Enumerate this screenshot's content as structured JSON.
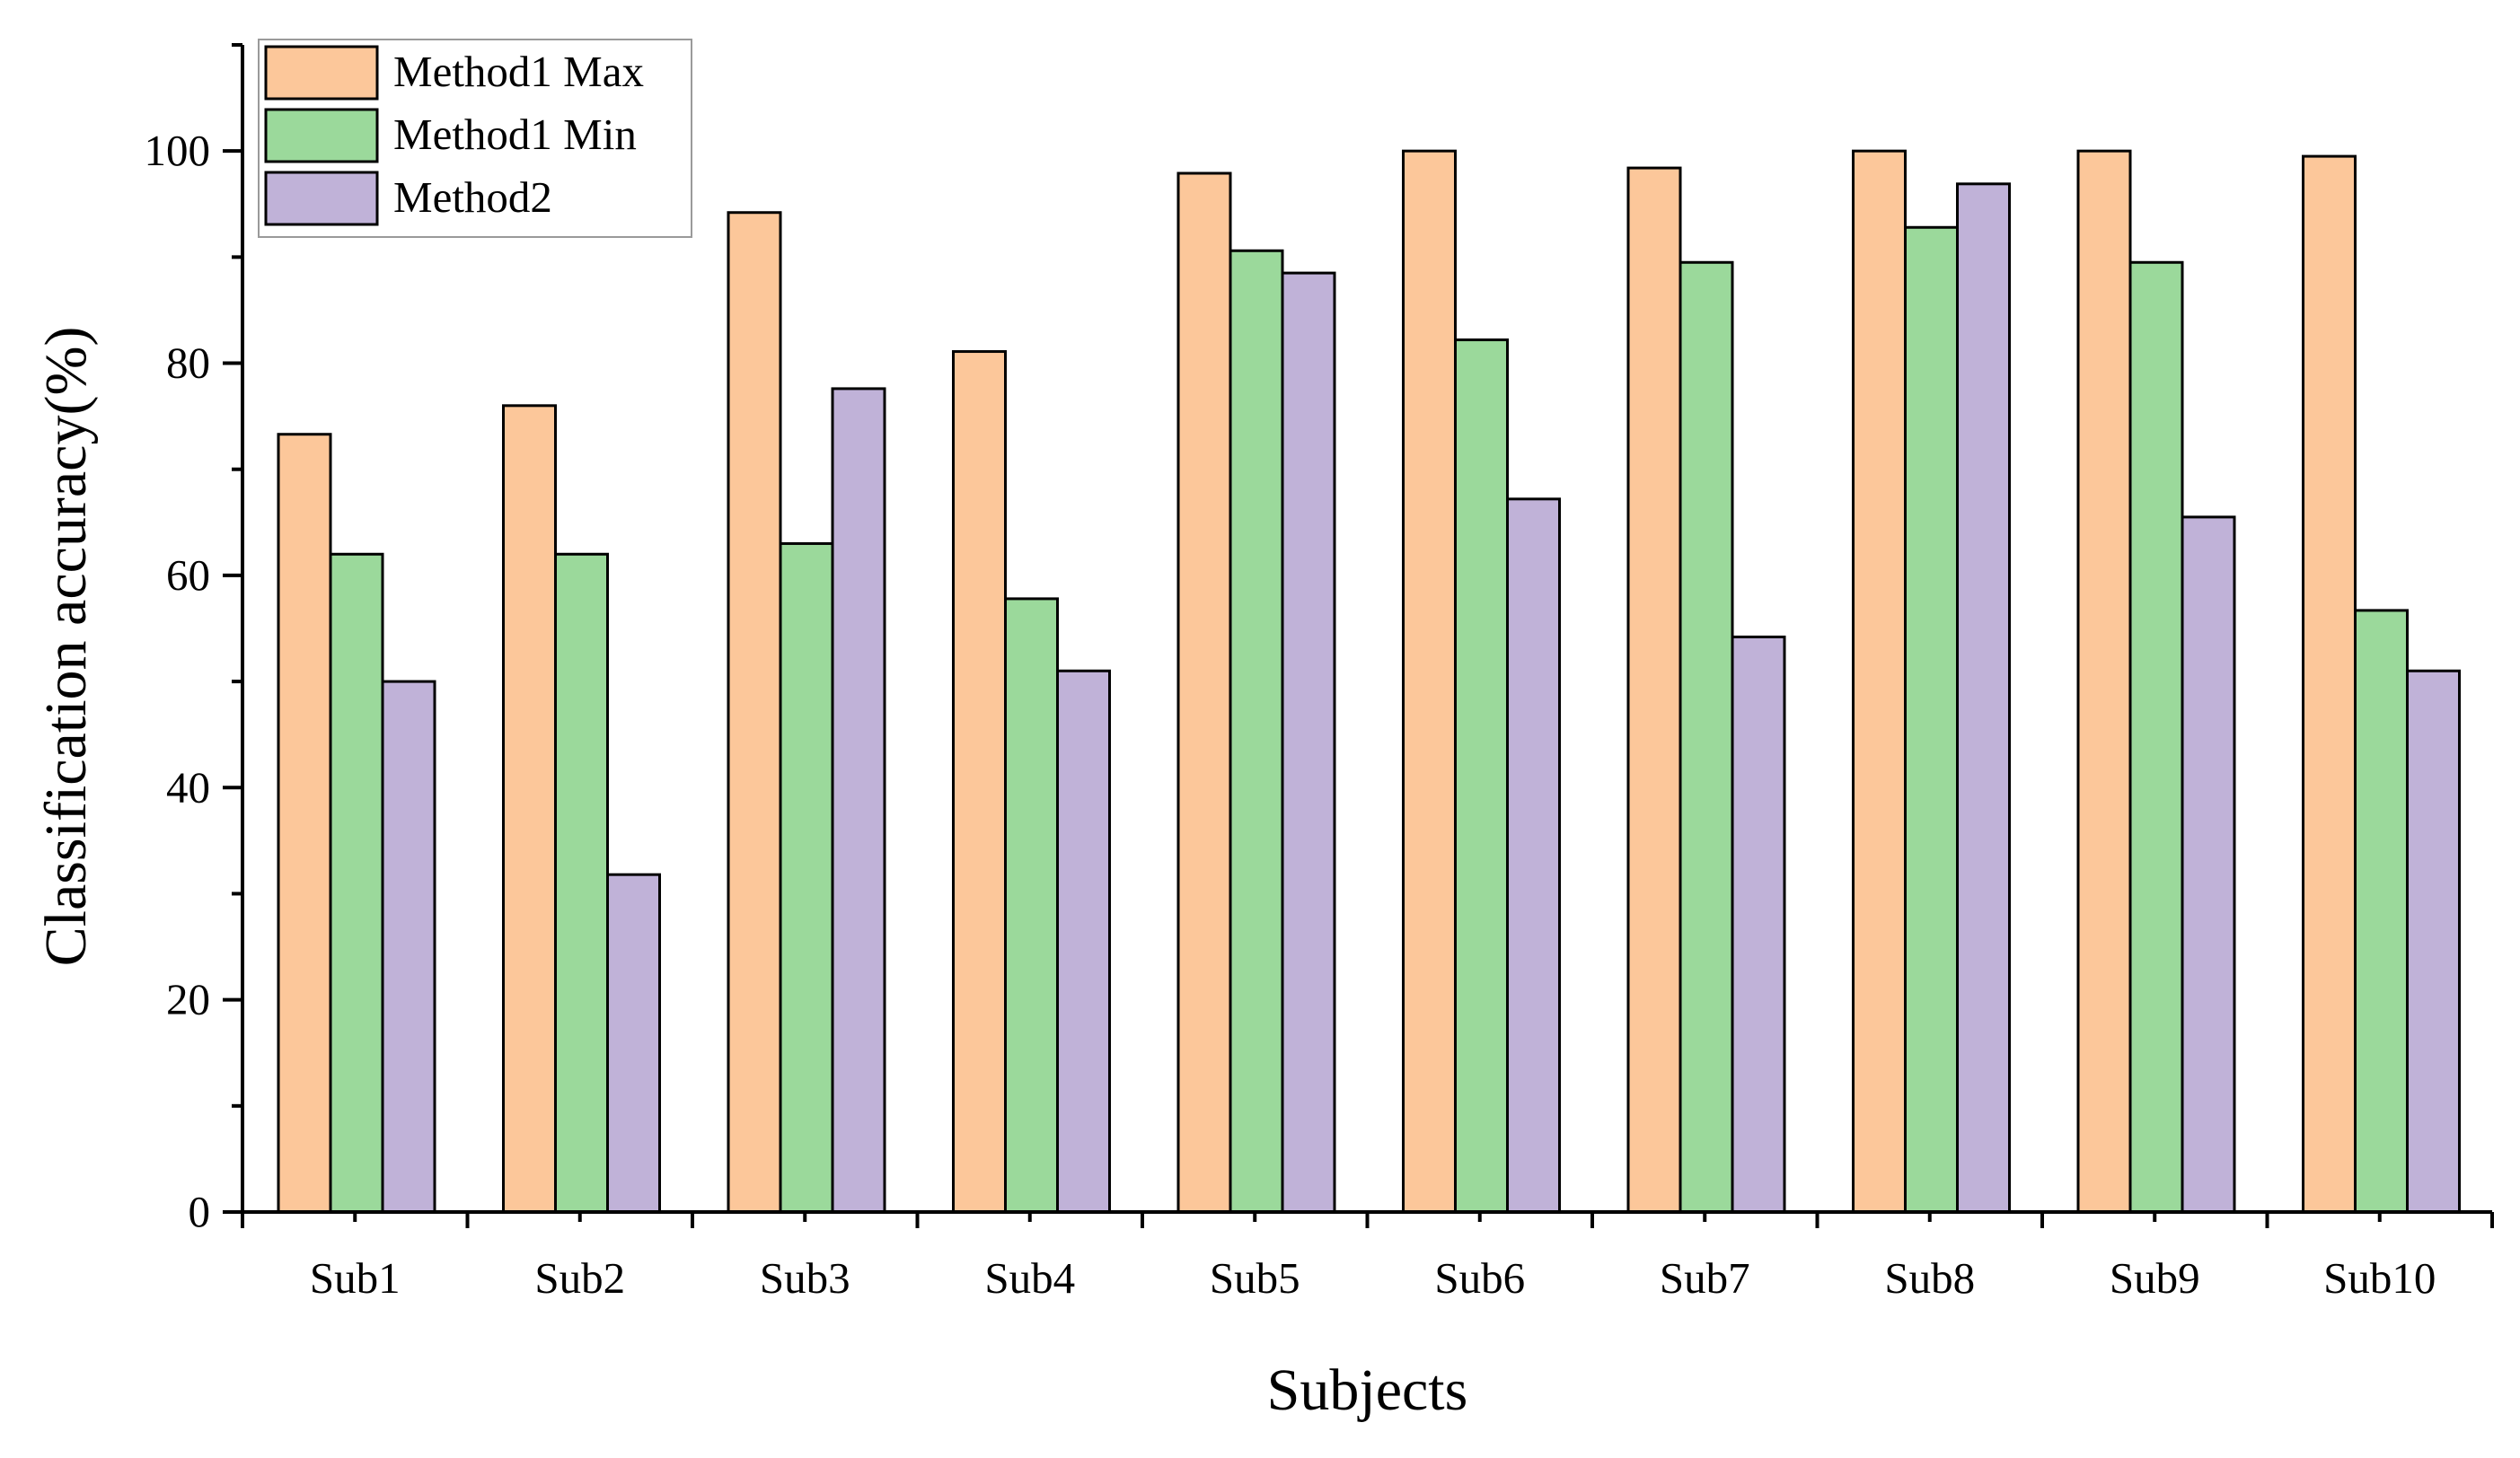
{
  "chart_data": {
    "type": "bar",
    "title": "",
    "xlabel": "Subjects",
    "ylabel": "Classification accuracy(%)",
    "ylim": [
      0,
      110
    ],
    "yticks": [
      "0",
      "20",
      "40",
      "60",
      "80",
      "100"
    ],
    "grid": false,
    "legend_position": "top-left",
    "categories": [
      "Sub1",
      "Sub2",
      "Sub3",
      "Sub4",
      "Sub5",
      "Sub6",
      "Sub7",
      "Sub8",
      "Sub9",
      "Sub10"
    ],
    "series": [
      {
        "name": "Method1 Max",
        "color": "#FCC79A",
        "values": [
          73.3,
          76.0,
          94.2,
          81.1,
          97.9,
          100.0,
          98.4,
          100.0,
          100.0,
          99.5
        ]
      },
      {
        "name": "Method1 Min",
        "color": "#9BD99B",
        "values": [
          62.0,
          62.0,
          63.0,
          57.8,
          90.6,
          82.2,
          89.5,
          92.8,
          89.5,
          56.7
        ]
      },
      {
        "name": "Method2",
        "color": "#C0B2D8",
        "values": [
          50.0,
          31.8,
          77.6,
          51.0,
          88.5,
          67.2,
          54.2,
          96.9,
          65.5,
          51.0
        ]
      }
    ]
  }
}
